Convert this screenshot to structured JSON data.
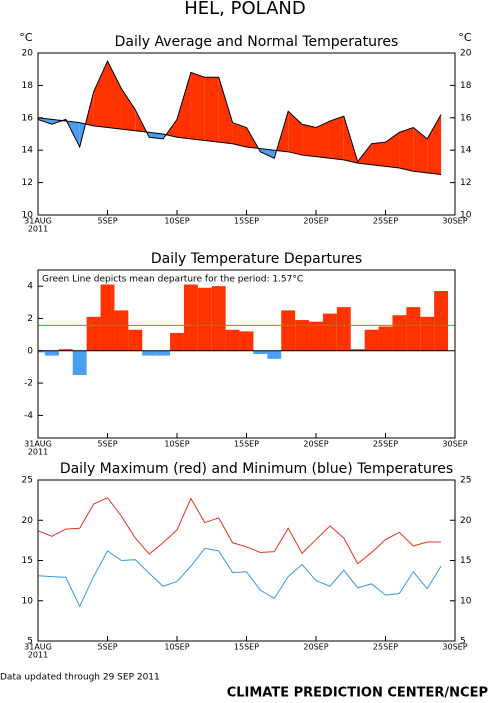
{
  "title": "HEL, POLAND",
  "chart_data": [
    {
      "type": "area",
      "title": "Daily Average and Normal Temperatures",
      "y_unit": "°C",
      "y2_unit": "°C",
      "x": [
        "2011-08-31",
        "2011-09-01",
        "2011-09-02",
        "2011-09-03",
        "2011-09-04",
        "2011-09-05",
        "2011-09-06",
        "2011-09-07",
        "2011-09-08",
        "2011-09-09",
        "2011-09-10",
        "2011-09-11",
        "2011-09-12",
        "2011-09-13",
        "2011-09-14",
        "2011-09-15",
        "2011-09-16",
        "2011-09-17",
        "2011-09-18",
        "2011-09-19",
        "2011-09-20",
        "2011-09-21",
        "2011-09-22",
        "2011-09-23",
        "2011-09-24",
        "2011-09-25",
        "2011-09-26",
        "2011-09-27",
        "2011-09-28",
        "2011-09-29"
      ],
      "xlim": [
        "2011-08-31",
        "2011-09-30"
      ],
      "xticks": [
        {
          "value": "2011-08-31",
          "label": "31AUG"
        },
        {
          "value": "2011-09-05",
          "label": "5SEP"
        },
        {
          "value": "2011-09-10",
          "label": "10SEP"
        },
        {
          "value": "2011-09-15",
          "label": "15SEP"
        },
        {
          "value": "2011-09-20",
          "label": "20SEP"
        },
        {
          "value": "2011-09-25",
          "label": "25SEP"
        },
        {
          "value": "2011-09-30",
          "label": "30SEP"
        }
      ],
      "x_sublabel": "2011",
      "ylim": [
        10,
        20
      ],
      "yticks": [
        10,
        12,
        14,
        16,
        18,
        20
      ],
      "y2lim": [
        10,
        20
      ],
      "y2ticks": [
        10,
        12,
        14,
        16,
        18,
        20
      ],
      "series": [
        {
          "color": "#000000",
          "values": [
            15.9,
            15.6,
            15.9,
            14.2,
            17.6,
            19.5,
            17.8,
            16.5,
            14.8,
            14.7,
            15.9,
            18.8,
            18.5,
            18.5,
            15.7,
            15.4,
            13.9,
            13.5,
            16.4,
            15.6,
            15.4,
            15.8,
            16.1,
            13.3,
            14.4,
            14.5,
            15.1,
            15.4,
            14.7,
            16.2
          ]
        },
        {
          "color": "#000000",
          "values": [
            16.0,
            15.9,
            15.8,
            15.7,
            15.5,
            15.4,
            15.3,
            15.2,
            15.1,
            15.0,
            14.8,
            14.7,
            14.6,
            14.5,
            14.4,
            14.2,
            14.1,
            14.0,
            13.9,
            13.7,
            13.6,
            13.5,
            13.4,
            13.2,
            13.1,
            13.0,
            12.9,
            12.7,
            12.6,
            12.5
          ]
        }
      ],
      "fill_above_color": "#ff3300",
      "fill_below_color": "#4a9ff0"
    },
    {
      "type": "bar",
      "title": "Daily Temperature Departures",
      "annotation": "Green Line depicts mean departure for the period: 1.57°C",
      "x": [
        "2011-08-31",
        "2011-09-01",
        "2011-09-02",
        "2011-09-03",
        "2011-09-04",
        "2011-09-05",
        "2011-09-06",
        "2011-09-07",
        "2011-09-08",
        "2011-09-09",
        "2011-09-10",
        "2011-09-11",
        "2011-09-12",
        "2011-09-13",
        "2011-09-14",
        "2011-09-15",
        "2011-09-16",
        "2011-09-17",
        "2011-09-18",
        "2011-09-19",
        "2011-09-20",
        "2011-09-21",
        "2011-09-22",
        "2011-09-23",
        "2011-09-24",
        "2011-09-25",
        "2011-09-26",
        "2011-09-27",
        "2011-09-28",
        "2011-09-29"
      ],
      "xlim": [
        "2011-08-31",
        "2011-09-30"
      ],
      "xticks": [
        {
          "value": "2011-08-31",
          "label": "31AUG"
        },
        {
          "value": "2011-09-05",
          "label": "5SEP"
        },
        {
          "value": "2011-09-10",
          "label": "10SEP"
        },
        {
          "value": "2011-09-15",
          "label": "15SEP"
        },
        {
          "value": "2011-09-20",
          "label": "20SEP"
        },
        {
          "value": "2011-09-25",
          "label": "25SEP"
        },
        {
          "value": "2011-09-30",
          "label": "30SEP"
        }
      ],
      "x_sublabel": "2011",
      "ylim": [
        -5.4,
        5
      ],
      "yticks": [
        -4,
        -2,
        0,
        2,
        4
      ],
      "values": [
        -0.1,
        -0.3,
        0.1,
        -1.5,
        2.1,
        4.1,
        2.5,
        1.3,
        -0.3,
        -0.3,
        1.1,
        4.1,
        3.9,
        4.0,
        1.3,
        1.2,
        -0.2,
        -0.5,
        2.5,
        1.9,
        1.8,
        2.3,
        2.7,
        0.1,
        1.3,
        1.5,
        2.2,
        2.7,
        2.1,
        3.7
      ],
      "positive_color": "#ff3300",
      "negative_color": "#4a9ff0",
      "mean_line": {
        "value": 1.57,
        "color": "#22bb22"
      }
    },
    {
      "type": "line",
      "title": "Daily Maximum (red) and Minimum (blue) Temperatures",
      "x": [
        "2011-08-31",
        "2011-09-01",
        "2011-09-02",
        "2011-09-03",
        "2011-09-04",
        "2011-09-05",
        "2011-09-06",
        "2011-09-07",
        "2011-09-08",
        "2011-09-09",
        "2011-09-10",
        "2011-09-11",
        "2011-09-12",
        "2011-09-13",
        "2011-09-14",
        "2011-09-15",
        "2011-09-16",
        "2011-09-17",
        "2011-09-18",
        "2011-09-19",
        "2011-09-20",
        "2011-09-21",
        "2011-09-22",
        "2011-09-23",
        "2011-09-24",
        "2011-09-25",
        "2011-09-26",
        "2011-09-27",
        "2011-09-28",
        "2011-09-29"
      ],
      "xlim": [
        "2011-08-31",
        "2011-09-30"
      ],
      "xticks": [
        {
          "value": "2011-08-31",
          "label": "31AUG"
        },
        {
          "value": "2011-09-05",
          "label": "5SEP"
        },
        {
          "value": "2011-09-10",
          "label": "10SEP"
        },
        {
          "value": "2011-09-15",
          "label": "15SEP"
        },
        {
          "value": "2011-09-20",
          "label": "20SEP"
        },
        {
          "value": "2011-09-25",
          "label": "25SEP"
        },
        {
          "value": "2011-09-30",
          "label": "30SEP"
        }
      ],
      "x_sublabel": "2011",
      "ylim": [
        5,
        25
      ],
      "yticks": [
        5,
        10,
        15,
        20,
        25
      ],
      "y2lim": [
        5,
        25
      ],
      "y2ticks": [
        5,
        10,
        15,
        20,
        25
      ],
      "series": [
        {
          "color": "#e8331c",
          "values": [
            18.7,
            18.0,
            18.9,
            19.0,
            22.0,
            22.8,
            20.5,
            17.8,
            15.8,
            17.2,
            18.8,
            22.7,
            19.7,
            20.3,
            17.2,
            16.7,
            16.0,
            16.1,
            19.0,
            15.9,
            17.6,
            19.3,
            17.8,
            14.6,
            16.0,
            17.6,
            18.5,
            16.8,
            17.3,
            17.3
          ]
        },
        {
          "color": "#3a9ad9",
          "values": [
            13.1,
            13.0,
            12.9,
            9.3,
            13.0,
            16.2,
            15.0,
            15.1,
            13.4,
            11.8,
            12.4,
            14.3,
            16.5,
            16.2,
            13.5,
            13.6,
            11.3,
            10.3,
            13.0,
            14.5,
            12.5,
            11.8,
            13.8,
            11.6,
            12.1,
            10.7,
            10.9,
            13.6,
            11.5,
            14.3
          ]
        }
      ]
    }
  ],
  "footer": {
    "updated": "Data updated through 29 SEP 2011",
    "credit": "CLIMATE PREDICTION CENTER/NCEP"
  }
}
